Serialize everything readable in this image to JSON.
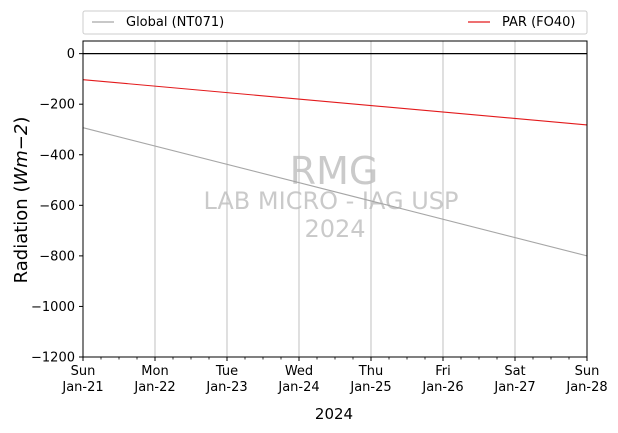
{
  "chart_data": {
    "type": "line",
    "xlabel": "2024",
    "ylabel_main": "Radiation (",
    "ylabel_unit": "Wm−2",
    "ylabel_close": ")",
    "ylim": [
      -1200,
      50
    ],
    "xlim": [
      "2024-01-21",
      "2024-01-28"
    ],
    "y_ticks": [
      0,
      -200,
      -400,
      -600,
      -800,
      -1000,
      -1200
    ],
    "y_tick_labels": [
      "0",
      "−200",
      "−400",
      "−600",
      "−800",
      "−1000",
      "−1200"
    ],
    "x_ticks": [
      {
        "date": "2024-01-21",
        "day": "Sun",
        "date_label": "Jan-21"
      },
      {
        "date": "2024-01-22",
        "day": "Mon",
        "date_label": "Jan-22"
      },
      {
        "date": "2024-01-23",
        "day": "Tue",
        "date_label": "Jan-23"
      },
      {
        "date": "2024-01-24",
        "day": "Wed",
        "date_label": "Jan-24"
      },
      {
        "date": "2024-01-25",
        "day": "Thu",
        "date_label": "Jan-25"
      },
      {
        "date": "2024-01-26",
        "day": "Fri",
        "date_label": "Jan-26"
      },
      {
        "date": "2024-01-27",
        "day": "Sat",
        "date_label": "Jan-27"
      },
      {
        "date": "2024-01-28",
        "day": "Sun",
        "date_label": "Jan-28"
      }
    ],
    "grid": "vertical",
    "zero_line": 0,
    "legend_placement": "top, above plot",
    "series": [
      {
        "name": "Global (NT071)",
        "color": "#a6a6a6",
        "x": [
          "2024-01-21",
          "2024-01-28"
        ],
        "y": [
          -293,
          -800
        ]
      },
      {
        "name": "PAR (FO40)",
        "color": "#e31a1c",
        "x": [
          "2024-01-21",
          "2024-01-28"
        ],
        "y": [
          -103,
          -282
        ]
      }
    ],
    "watermark": {
      "line1": "RMG",
      "line2": "LAB MICRO - IAG USP",
      "line3": "2024"
    }
  }
}
